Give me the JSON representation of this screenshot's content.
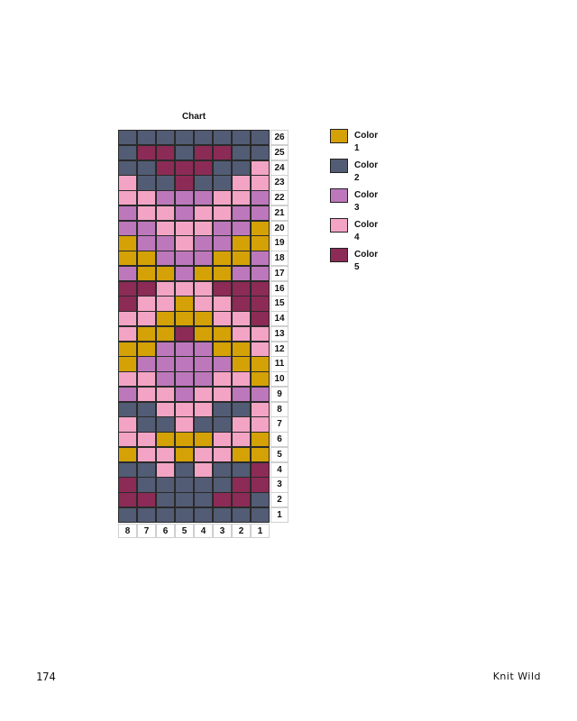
{
  "chart": {
    "title": "Chart",
    "row_numbers": [
      "26",
      "25",
      "24",
      "23",
      "22",
      "21",
      "20",
      "19",
      "18",
      "17",
      "16",
      "15",
      "14",
      "13",
      "12",
      "11",
      "10",
      "9",
      "8",
      "7",
      "6",
      "5",
      "4",
      "3",
      "2",
      "1"
    ],
    "column_numbers": [
      "8",
      "7",
      "6",
      "5",
      "4",
      "3",
      "2",
      "1"
    ],
    "rows": [
      [
        2,
        2,
        2,
        2,
        2,
        2,
        2,
        2
      ],
      [
        2,
        5,
        5,
        2,
        5,
        5,
        2,
        2
      ],
      [
        2,
        2,
        5,
        5,
        5,
        2,
        2,
        4
      ],
      [
        4,
        2,
        2,
        5,
        2,
        2,
        4,
        4
      ],
      [
        4,
        4,
        3,
        3,
        3,
        4,
        4,
        3
      ],
      [
        3,
        4,
        4,
        3,
        4,
        4,
        3,
        3
      ],
      [
        3,
        3,
        4,
        4,
        4,
        3,
        3,
        1
      ],
      [
        1,
        3,
        3,
        4,
        3,
        3,
        1,
        1
      ],
      [
        1,
        1,
        3,
        3,
        3,
        1,
        1,
        3
      ],
      [
        3,
        1,
        1,
        3,
        1,
        1,
        3,
        3
      ],
      [
        5,
        5,
        4,
        4,
        4,
        5,
        5,
        5
      ],
      [
        5,
        4,
        4,
        1,
        4,
        4,
        5,
        5
      ],
      [
        4,
        4,
        1,
        1,
        1,
        4,
        4,
        5
      ],
      [
        4,
        1,
        1,
        5,
        1,
        1,
        4,
        4
      ],
      [
        1,
        1,
        3,
        3,
        3,
        1,
        1,
        4
      ],
      [
        1,
        3,
        3,
        3,
        3,
        3,
        1,
        1
      ],
      [
        4,
        4,
        3,
        3,
        3,
        4,
        4,
        1
      ],
      [
        3,
        4,
        4,
        3,
        4,
        4,
        3,
        3
      ],
      [
        2,
        2,
        4,
        4,
        4,
        2,
        2,
        4
      ],
      [
        4,
        2,
        2,
        4,
        2,
        2,
        4,
        4
      ],
      [
        4,
        4,
        1,
        1,
        1,
        4,
        4,
        1
      ],
      [
        1,
        4,
        4,
        1,
        4,
        4,
        1,
        1
      ],
      [
        2,
        2,
        4,
        2,
        4,
        2,
        2,
        5
      ],
      [
        5,
        2,
        2,
        2,
        2,
        2,
        5,
        5
      ],
      [
        5,
        5,
        2,
        2,
        2,
        5,
        5,
        2
      ],
      [
        2,
        2,
        2,
        2,
        2,
        2,
        2,
        2
      ]
    ]
  },
  "legend": [
    {
      "label": "Color 1",
      "color": "#d4a106"
    },
    {
      "label": "Color 2",
      "color": "#525c74"
    },
    {
      "label": "Color 3",
      "color": "#bc78bb"
    },
    {
      "label": "Color 4",
      "color": "#f3a4c4"
    },
    {
      "label": "Color 5",
      "color": "#8c2b56"
    }
  ],
  "footer": {
    "page_number": "174",
    "book_title": "Knit Wild"
  }
}
